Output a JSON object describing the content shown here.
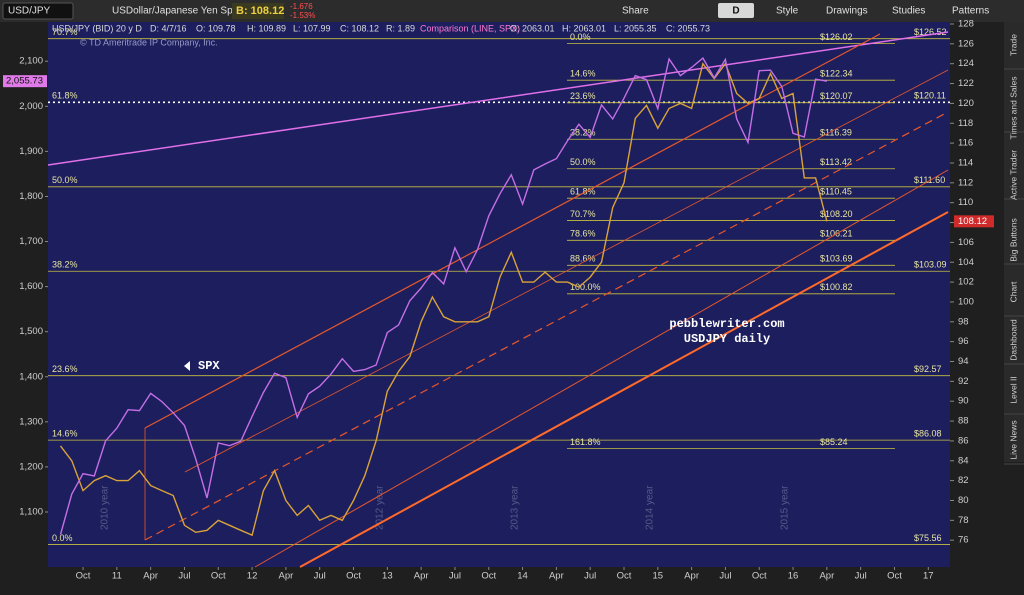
{
  "toolbar": {
    "symbol": "USD/JPY",
    "description": "USDollar/Japanese Yen Spot",
    "bid": "B: 108.12",
    "change": "-1.676",
    "change_pct": "-1.53%",
    "share": "Share",
    "aggregation": "D",
    "style": "Style",
    "drawings": "Drawings",
    "studies": "Studies",
    "patterns": "Patterns"
  },
  "side_tabs": [
    "Trade",
    "Times and Sales",
    "Active Trader",
    "Big Buttons",
    "Chart",
    "Dashboard",
    "Level II",
    "Live News"
  ],
  "chart_info": {
    "symbol": "USD/JPY (BID) 20 y D",
    "date": "D: 4/7/16",
    "open": "O: 109.78",
    "high": "H: 109.89",
    "low": "L: 107.99",
    "close": "C: 108.12",
    "range": "R: 1.89",
    "comparison": "Comparison (LINE, SPX)",
    "cmp_open": "O: 2063.01",
    "cmp_high": "H: 2063.01",
    "cmp_low": "L: 2055.35",
    "cmp_close": "C: 2055.73",
    "copyright": "© TD Ameritrade IP Company, Inc."
  },
  "chart_data": {
    "type": "line",
    "categories": [
      null,
      null,
      "Oct",
      null,
      null,
      "11",
      null,
      null,
      "Apr",
      null,
      null,
      "Jul",
      null,
      null,
      "Oct",
      null,
      null,
      "12",
      null,
      null,
      "Apr",
      null,
      null,
      "Jul",
      null,
      null,
      "Oct",
      null,
      null,
      "13",
      null,
      null,
      "Apr",
      null,
      null,
      "Jul",
      null,
      null,
      "Oct",
      null,
      null,
      "14",
      null,
      null,
      "Apr",
      null,
      null,
      "Jul",
      null,
      null,
      "Oct",
      null,
      null,
      "15",
      null,
      null,
      "Apr",
      null,
      null,
      "Jul",
      null,
      null,
      "Oct",
      null,
      null,
      "16",
      null,
      null,
      "Apr",
      null,
      null,
      "Jul",
      null,
      null,
      "Oct",
      null,
      null,
      "17"
    ],
    "series": [
      {
        "color": "#d9a33a",
        "axis": "y2",
        "values": [
          85.5,
          84,
          81,
          82,
          82.5,
          82,
          82,
          83,
          81.5,
          81,
          80.5,
          77.5,
          76.8,
          77,
          78,
          77.5,
          77,
          76.5,
          81,
          83,
          80,
          78.5,
          79.5,
          78,
          78.5,
          78,
          80,
          82.5,
          86,
          91,
          93,
          94.5,
          98,
          100.5,
          98.5,
          98,
          98,
          98,
          98.5,
          102.5,
          105,
          102,
          102,
          103,
          102,
          102,
          101.5,
          102.5,
          104,
          109.5,
          112,
          118.5,
          119.8,
          117.5,
          119.5,
          120,
          119.5,
          124,
          122.5,
          124,
          121,
          120,
          120.5,
          123,
          120.5,
          121,
          112.5,
          112.5,
          108.12,
          null,
          null,
          null,
          null,
          null,
          null,
          null,
          null,
          null
        ]
      },
      {
        "color": "#c46fe6",
        "values": [
          1050,
          1140,
          1185,
          1180,
          1258,
          1286,
          1327,
          1325,
          1363,
          1345,
          1320,
          1292,
          1218,
          1131,
          1253,
          1247,
          1257,
          1312,
          1365,
          1408,
          1398,
          1310,
          1362,
          1379,
          1406,
          1440,
          1412,
          1416,
          1426,
          1498,
          1515,
          1569,
          1597,
          1631,
          1606,
          1686,
          1633,
          1682,
          1757,
          1806,
          1848,
          1783,
          1859,
          1872,
          1884,
          1924,
          1960,
          1931,
          2003,
          1972,
          2018,
          2068,
          2059,
          1995,
          2105,
          2068,
          2086,
          2107,
          2063,
          2104,
          1972,
          1920,
          2079,
          2080,
          2044,
          1940,
          1932,
          2060,
          2055.73,
          null,
          null,
          null,
          null,
          null,
          null,
          null,
          null,
          null
        ]
      }
    ],
    "ylim": [
      978,
      2187
    ],
    "yticks": [
      {
        "value": 1100,
        "label": "1,100"
      },
      {
        "value": 1200,
        "label": "1,200"
      },
      {
        "value": 1300,
        "label": "1,300"
      },
      {
        "value": 1400,
        "label": "1,400"
      },
      {
        "value": 1500,
        "label": "1,500"
      },
      {
        "value": 1600,
        "label": "1,600"
      },
      {
        "value": 1700,
        "label": "1,700"
      },
      {
        "value": 1800,
        "label": "1,800"
      },
      {
        "value": 1900,
        "label": "1,900"
      },
      {
        "value": 2000,
        "label": "2,000"
      },
      {
        "value": 2100,
        "label": "2,100"
      }
    ],
    "y2lim": [
      73.3,
      128.2
    ],
    "y2ticks": [
      76,
      78,
      80,
      82,
      84,
      86,
      88,
      90,
      92,
      94,
      96,
      98,
      100,
      102,
      104,
      106,
      108,
      110,
      112,
      114,
      116,
      118,
      120,
      122,
      124,
      126,
      128
    ],
    "last_labels": {
      "y": "2,055.73",
      "y2": "108.12"
    },
    "fib_long": {
      "values": [
        126.52,
        120.11,
        111.6,
        103.09,
        92.57,
        86.08,
        75.56
      ],
      "value_labels": [
        "$126.52",
        "$120.11",
        "$111.60",
        "$103.09",
        "$92.57",
        "$86.08",
        "$75.56"
      ],
      "pct_labels": [
        "70.7%",
        "61.8%",
        "50.0%",
        "38.2%",
        "23.6%",
        "14.6%",
        "0.0%"
      ]
    },
    "fib_short": {
      "values": [
        126.02,
        122.34,
        120.07,
        116.39,
        113.42,
        110.45,
        108.2,
        106.21,
        103.69,
        100.82,
        85.24
      ],
      "value_labels": [
        "$126.02",
        "$122.34",
        "$120.07",
        "$116.39",
        "$113.42",
        "$110.45",
        "$108.20",
        "$106.21",
        "$103.69",
        "$100.82",
        "$85.24"
      ],
      "pct_labels": [
        "0.0%",
        "14.6%",
        "23.6%",
        "38.2%",
        "50.0%",
        "61.8%",
        "70.7%",
        "78.6%",
        "88.6%",
        "100.0%",
        "161.8%"
      ]
    },
    "annotations": [
      "SPX",
      "pebblewriter.com",
      "USDJPY daily"
    ],
    "year_marks": [
      "2010 year",
      "2012 year",
      "2013 year",
      "2014 year",
      "2015 year"
    ]
  }
}
